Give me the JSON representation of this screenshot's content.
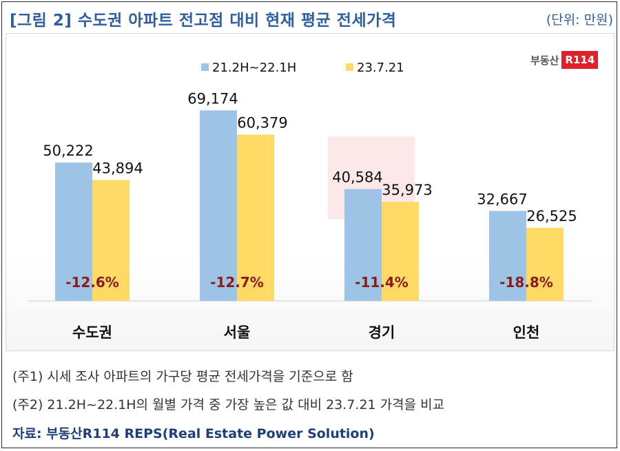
{
  "header": {
    "title": "[그림 2] 수도권 아파트 전고점 대비 현재 평균 전세가격",
    "unit": "(단위: 만원)"
  },
  "logo": {
    "text": "부동산",
    "box": "R114"
  },
  "chart_data": {
    "type": "bar",
    "categories": [
      "수도권",
      "서울",
      "경기",
      "인천"
    ],
    "series": [
      {
        "name": "21.2H~22.1H",
        "color": "#9dc3e6",
        "values": [
          50222,
          69174,
          40584,
          32667
        ],
        "labels": [
          "50,222",
          "69,174",
          "40,584",
          "32,667"
        ]
      },
      {
        "name": "23.7.21",
        "color": "#ffd966",
        "values": [
          43894,
          60379,
          35973,
          26525
        ],
        "labels": [
          "43,894",
          "60,379",
          "35,973",
          "26,525"
        ]
      }
    ],
    "change_labels": [
      "-12.6%",
      "-12.7%",
      "-11.4%",
      "-18.8%"
    ],
    "change_color": "#8b1a1a",
    "ylim": [
      0,
      80000
    ],
    "legend": "top-center",
    "grid": false
  },
  "notes": [
    "(주1) 시세 조사 아파트의 가구당 평균 전세가격을 기준으로 함",
    "(주2) 21.2H~22.1H의 월별 가격 중 가장 높은 값 대비 23.7.21 가격을 비교"
  ],
  "source": "자료: 부동산R114 REPS(Real Estate Power Solution)"
}
